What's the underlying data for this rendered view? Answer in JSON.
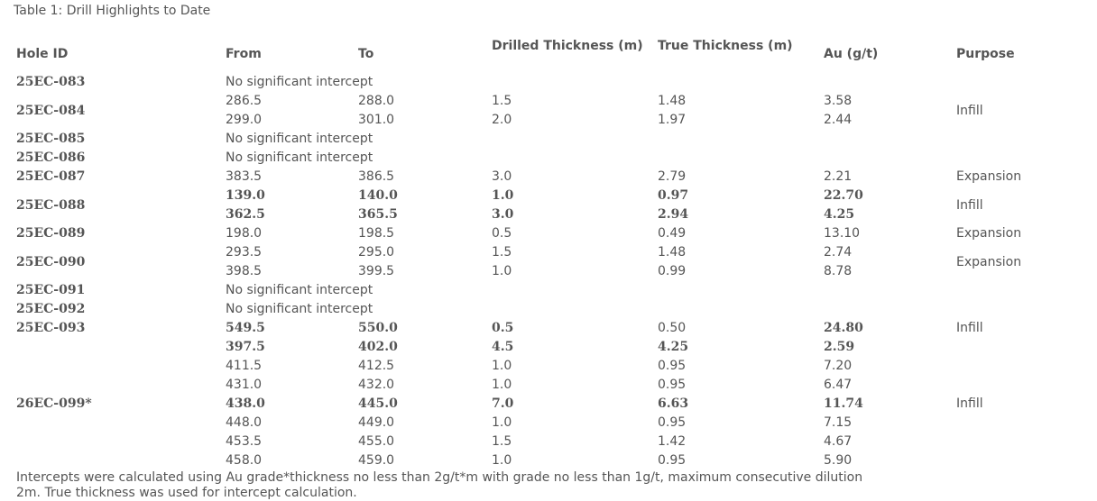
{
  "caption": "Table 1: Drill Highlights to Date",
  "headers": {
    "hole_id": "Hole ID",
    "from": "From",
    "to": "To",
    "drilled_thickness": "Drilled Thickness (m)",
    "true_thickness": "True Thickness (m)",
    "au": "Au (g/t)",
    "purpose": "Purpose"
  },
  "holes": [
    {
      "hole_id": "25EC-083",
      "purpose": "",
      "rows": [
        {
          "note": "No significant intercept"
        }
      ]
    },
    {
      "hole_id": "25EC-084",
      "purpose": "Infill",
      "rows": [
        {
          "from": "286.5",
          "to": "288.0",
          "drilled": "1.5",
          "true": "1.48",
          "au": "3.58",
          "bold": false
        },
        {
          "from": "299.0",
          "to": "301.0",
          "drilled": "2.0",
          "true": "1.97",
          "au": "2.44",
          "bold": false
        }
      ]
    },
    {
      "hole_id": "25EC-085",
      "purpose": "",
      "rows": [
        {
          "note": "No significant intercept"
        }
      ]
    },
    {
      "hole_id": "25EC-086",
      "purpose": "",
      "rows": [
        {
          "note": "No significant intercept"
        }
      ]
    },
    {
      "hole_id": "25EC-087",
      "purpose": "Expansion",
      "rows": [
        {
          "from": "383.5",
          "to": "386.5",
          "drilled": "3.0",
          "true": "2.79",
          "au": "2.21",
          "bold": false
        }
      ]
    },
    {
      "hole_id": "25EC-088",
      "purpose": "Infill",
      "rows": [
        {
          "from": "139.0",
          "to": "140.0",
          "drilled": "1.0",
          "true": "0.97",
          "au": "22.70",
          "bold": true
        },
        {
          "from": "362.5",
          "to": "365.5",
          "drilled": "3.0",
          "true": "2.94",
          "au": "4.25",
          "bold": true
        }
      ]
    },
    {
      "hole_id": "25EC-089",
      "purpose": "Expansion",
      "rows": [
        {
          "from": "198.0",
          "to": "198.5",
          "drilled": "0.5",
          "true": "0.49",
          "au": "13.10",
          "bold": false
        }
      ]
    },
    {
      "hole_id": "25EC-090",
      "purpose": "Expansion",
      "rows": [
        {
          "from": "293.5",
          "to": "295.0",
          "drilled": "1.5",
          "true": "1.48",
          "au": "2.74",
          "bold": false
        },
        {
          "from": "398.5",
          "to": "399.5",
          "drilled": "1.0",
          "true": "0.99",
          "au": "8.78",
          "bold": false
        }
      ]
    },
    {
      "hole_id": "25EC-091",
      "purpose": "",
      "rows": [
        {
          "note": "No significant intercept"
        }
      ]
    },
    {
      "hole_id": "25EC-092",
      "purpose": "",
      "rows": [
        {
          "note": "No significant intercept"
        }
      ]
    },
    {
      "hole_id": "25EC-093",
      "purpose": "Infill",
      "hole_top": true,
      "purpose_top": true,
      "rows": [
        {
          "from": "549.5",
          "to": "550.0",
          "drilled": "0.5",
          "true": "0.50",
          "au": "24.80",
          "bold": true,
          "true_plain": true
        },
        {
          "from": "397.5",
          "to": "402.0",
          "drilled": "4.5",
          "true": "4.25",
          "au": "2.59",
          "bold": true
        },
        {
          "from": "411.5",
          "to": "412.5",
          "drilled": "1.0",
          "true": "0.95",
          "au": "7.20",
          "bold": false
        },
        {
          "from": "431.0",
          "to": "432.0",
          "drilled": "1.0",
          "true": "0.95",
          "au": "6.47",
          "bold": false
        }
      ]
    },
    {
      "hole_id": "26EC-099*",
      "purpose": "Infill",
      "hole_top": true,
      "purpose_top": true,
      "rows": [
        {
          "from": "438.0",
          "to": "445.0",
          "drilled": "7.0",
          "true": "6.63",
          "au": "11.74",
          "bold": true
        },
        {
          "from": "448.0",
          "to": "449.0",
          "drilled": "1.0",
          "true": "0.95",
          "au": "7.15",
          "bold": false
        },
        {
          "from": "453.5",
          "to": "455.0",
          "drilled": "1.5",
          "true": "1.42",
          "au": "4.67",
          "bold": false
        },
        {
          "from": "458.0",
          "to": "459.0",
          "drilled": "1.0",
          "true": "0.95",
          "au": "5.90",
          "bold": false
        }
      ]
    }
  ],
  "footnote": "Intercepts were calculated using Au grade*thickness no less than 2g/t*m with grade no less than 1g/t, maximum consecutive dilution 2m. True thickness was used for intercept calculation."
}
